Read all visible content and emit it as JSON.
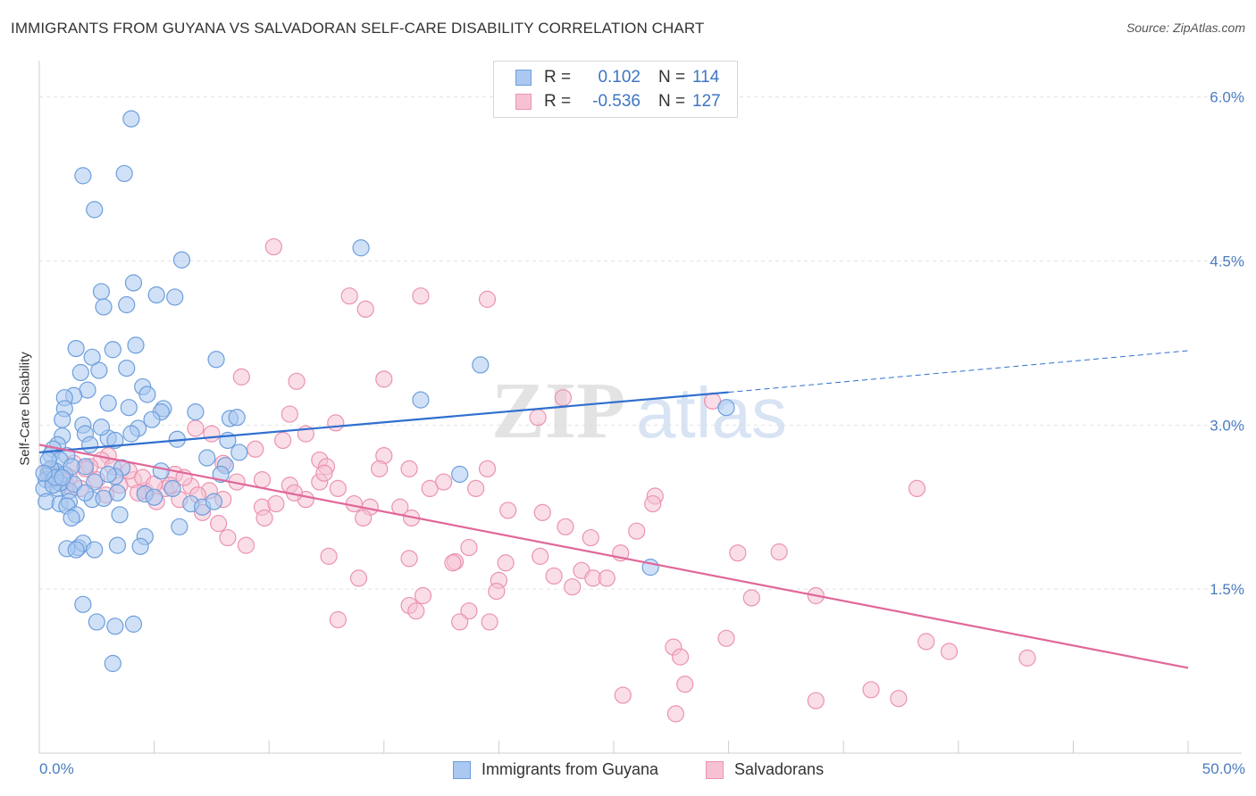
{
  "header": {
    "title": "IMMIGRANTS FROM GUYANA VS SALVADORAN SELF-CARE DISABILITY CORRELATION CHART",
    "source": "Source: ZipAtlas.com"
  },
  "watermark": {
    "zip": "ZIP",
    "atlas": "atlas"
  },
  "legend_top": {
    "rows": [
      {
        "r_label": "R =",
        "r_value": "0.102",
        "n_label": "N =",
        "n_value": "114"
      },
      {
        "r_label": "R =",
        "r_value": "-0.536",
        "n_label": "N =",
        "n_value": "127"
      }
    ]
  },
  "legend_bottom": {
    "items": [
      {
        "label": "Immigrants from Guyana"
      },
      {
        "label": "Salvadorans"
      }
    ]
  },
  "colors": {
    "blue_fill": "#aac8f0",
    "blue_stroke": "#6d9edc",
    "blue_line": "#2f6fcf",
    "pink_fill": "#f6c2d3",
    "pink_stroke": "#eb92b1",
    "pink_line": "#e0679a",
    "tick_text": "#4a7cc0",
    "grid": "#e4e4e4"
  },
  "chart_data": {
    "type": "scatter",
    "title": "IMMIGRANTS FROM GUYANA VS SALVADORAN SELF-CARE DISABILITY CORRELATION CHART",
    "xlabel": "",
    "ylabel": "Self-Care Disability",
    "xlim": [
      0,
      50
    ],
    "ylim": [
      0,
      6.25
    ],
    "x_tick_labels": [
      "0.0%",
      "50.0%"
    ],
    "y_ticks": [
      1.5,
      3.0,
      4.5,
      6.0
    ],
    "y_tick_labels": [
      "1.5%",
      "3.0%",
      "4.5%",
      "6.0%"
    ],
    "grid": true,
    "legend_position": "top-center",
    "series": [
      {
        "name": "Immigrants from Guyana",
        "r": 0.102,
        "n": 114,
        "trend": {
          "x0": 0,
          "y0": 2.75,
          "x_solid_end": 30,
          "y_solid_end": 3.3,
          "x1": 50,
          "y1": 3.68
        },
        "points": [
          [
            4.0,
            5.8
          ],
          [
            1.9,
            5.28
          ],
          [
            3.7,
            5.3
          ],
          [
            2.4,
            4.97
          ],
          [
            6.2,
            4.51
          ],
          [
            14.0,
            4.62
          ],
          [
            4.1,
            4.3
          ],
          [
            2.7,
            4.22
          ],
          [
            5.1,
            4.19
          ],
          [
            5.9,
            4.17
          ],
          [
            3.8,
            4.1
          ],
          [
            2.8,
            4.08
          ],
          [
            4.2,
            3.73
          ],
          [
            1.6,
            3.7
          ],
          [
            3.2,
            3.69
          ],
          [
            7.7,
            3.6
          ],
          [
            2.3,
            3.62
          ],
          [
            19.2,
            3.55
          ],
          [
            1.8,
            3.48
          ],
          [
            2.6,
            3.5
          ],
          [
            3.8,
            3.52
          ],
          [
            4.5,
            3.35
          ],
          [
            2.1,
            3.32
          ],
          [
            1.5,
            3.27
          ],
          [
            1.1,
            3.25
          ],
          [
            16.6,
            3.23
          ],
          [
            3.0,
            3.2
          ],
          [
            3.9,
            3.16
          ],
          [
            1.1,
            3.15
          ],
          [
            5.4,
            3.15
          ],
          [
            5.3,
            3.12
          ],
          [
            6.8,
            3.12
          ],
          [
            4.9,
            3.05
          ],
          [
            8.3,
            3.06
          ],
          [
            8.6,
            3.07
          ],
          [
            1.9,
            3.0
          ],
          [
            4.3,
            2.97
          ],
          [
            3.0,
            2.88
          ],
          [
            3.3,
            2.86
          ],
          [
            6.0,
            2.87
          ],
          [
            1.0,
            2.9
          ],
          [
            4.0,
            2.92
          ],
          [
            8.2,
            2.86
          ],
          [
            0.8,
            2.82
          ],
          [
            0.6,
            2.78
          ],
          [
            2.0,
            2.92
          ],
          [
            0.5,
            2.73
          ],
          [
            1.2,
            2.72
          ],
          [
            8.7,
            2.75
          ],
          [
            0.9,
            2.68
          ],
          [
            7.3,
            2.7
          ],
          [
            2.0,
            2.62
          ],
          [
            8.1,
            2.63
          ],
          [
            0.7,
            2.58
          ],
          [
            3.6,
            2.61
          ],
          [
            0.4,
            2.55
          ],
          [
            1.1,
            2.55
          ],
          [
            3.3,
            2.53
          ],
          [
            0.3,
            2.5
          ],
          [
            0.6,
            2.5
          ],
          [
            2.4,
            2.48
          ],
          [
            18.3,
            2.55
          ],
          [
            5.3,
            2.58
          ],
          [
            0.2,
            2.42
          ],
          [
            0.8,
            2.42
          ],
          [
            1.3,
            2.4
          ],
          [
            3.4,
            2.38
          ],
          [
            4.6,
            2.37
          ],
          [
            5.0,
            2.34
          ],
          [
            0.3,
            2.3
          ],
          [
            0.9,
            2.28
          ],
          [
            1.3,
            2.3
          ],
          [
            2.3,
            2.32
          ],
          [
            2.8,
            2.33
          ],
          [
            1.2,
            2.26
          ],
          [
            6.6,
            2.28
          ],
          [
            7.1,
            2.25
          ],
          [
            7.6,
            2.3
          ],
          [
            1.6,
            2.18
          ],
          [
            1.4,
            2.15
          ],
          [
            3.5,
            2.18
          ],
          [
            6.1,
            2.07
          ],
          [
            4.6,
            1.98
          ],
          [
            1.7,
            1.88
          ],
          [
            1.9,
            1.92
          ],
          [
            1.2,
            1.87
          ],
          [
            1.6,
            1.86
          ],
          [
            2.4,
            1.86
          ],
          [
            3.4,
            1.9
          ],
          [
            4.4,
            1.89
          ],
          [
            26.6,
            1.7
          ],
          [
            1.9,
            1.36
          ],
          [
            2.5,
            1.2
          ],
          [
            3.3,
            1.16
          ],
          [
            4.1,
            1.18
          ],
          [
            3.2,
            0.82
          ],
          [
            29.9,
            3.16
          ],
          [
            0.5,
            2.6
          ],
          [
            0.9,
            2.47
          ],
          [
            1.4,
            2.62
          ],
          [
            2.2,
            2.82
          ],
          [
            0.4,
            2.68
          ],
          [
            2.7,
            2.98
          ],
          [
            4.7,
            3.28
          ],
          [
            1.0,
            3.05
          ],
          [
            0.6,
            2.45
          ],
          [
            1.5,
            2.46
          ],
          [
            2.0,
            2.38
          ],
          [
            3.0,
            2.55
          ],
          [
            5.8,
            2.42
          ],
          [
            7.9,
            2.55
          ],
          [
            0.7,
            2.52
          ],
          [
            1.0,
            2.52
          ],
          [
            0.2,
            2.56
          ]
        ]
      },
      {
        "name": "Salvadorans",
        "r": -0.536,
        "n": 127,
        "trend": {
          "x0": 0,
          "y0": 2.82,
          "x1": 50,
          "y1": 0.78
        },
        "points": [
          [
            10.2,
            4.63
          ],
          [
            13.5,
            4.18
          ],
          [
            16.6,
            4.18
          ],
          [
            19.5,
            4.15
          ],
          [
            14.2,
            4.06
          ],
          [
            8.8,
            3.44
          ],
          [
            11.2,
            3.4
          ],
          [
            15.0,
            3.42
          ],
          [
            21.7,
            3.07
          ],
          [
            29.3,
            3.22
          ],
          [
            22.8,
            3.25
          ],
          [
            10.9,
            3.1
          ],
          [
            12.9,
            3.02
          ],
          [
            11.6,
            2.92
          ],
          [
            6.8,
            2.97
          ],
          [
            7.5,
            2.92
          ],
          [
            9.4,
            2.78
          ],
          [
            10.6,
            2.86
          ],
          [
            15.0,
            2.72
          ],
          [
            12.2,
            2.68
          ],
          [
            12.5,
            2.62
          ],
          [
            14.8,
            2.6
          ],
          [
            16.1,
            2.6
          ],
          [
            19.5,
            2.6
          ],
          [
            3.0,
            2.72
          ],
          [
            2.7,
            2.68
          ],
          [
            1.5,
            2.65
          ],
          [
            2.2,
            2.62
          ],
          [
            5.9,
            2.55
          ],
          [
            8.0,
            2.65
          ],
          [
            9.7,
            2.5
          ],
          [
            10.9,
            2.45
          ],
          [
            12.2,
            2.48
          ],
          [
            13.0,
            2.42
          ],
          [
            17.0,
            2.42
          ],
          [
            17.6,
            2.48
          ],
          [
            19.0,
            2.42
          ],
          [
            26.8,
            2.35
          ],
          [
            38.2,
            2.42
          ],
          [
            1.2,
            2.45
          ],
          [
            2.5,
            2.5
          ],
          [
            4.1,
            2.5
          ],
          [
            4.6,
            2.4
          ],
          [
            5.5,
            2.42
          ],
          [
            6.1,
            2.32
          ],
          [
            6.6,
            2.44
          ],
          [
            7.4,
            2.4
          ],
          [
            8.0,
            2.32
          ],
          [
            9.7,
            2.25
          ],
          [
            10.3,
            2.28
          ],
          [
            11.6,
            2.32
          ],
          [
            13.7,
            2.28
          ],
          [
            14.4,
            2.25
          ],
          [
            15.7,
            2.25
          ],
          [
            20.4,
            2.22
          ],
          [
            21.9,
            2.2
          ],
          [
            26.7,
            2.28
          ],
          [
            5.1,
            2.3
          ],
          [
            4.3,
            2.38
          ],
          [
            3.5,
            2.45
          ],
          [
            9.8,
            2.15
          ],
          [
            14.1,
            2.15
          ],
          [
            16.2,
            2.15
          ],
          [
            22.9,
            2.07
          ],
          [
            26.0,
            2.03
          ],
          [
            24.0,
            1.97
          ],
          [
            8.2,
            1.97
          ],
          [
            9.0,
            1.9
          ],
          [
            18.7,
            1.88
          ],
          [
            30.4,
            1.83
          ],
          [
            32.2,
            1.84
          ],
          [
            25.3,
            1.83
          ],
          [
            12.6,
            1.8
          ],
          [
            16.1,
            1.78
          ],
          [
            18.1,
            1.75
          ],
          [
            20.3,
            1.74
          ],
          [
            21.8,
            1.8
          ],
          [
            18.0,
            1.74
          ],
          [
            22.4,
            1.62
          ],
          [
            23.6,
            1.67
          ],
          [
            24.1,
            1.6
          ],
          [
            24.7,
            1.6
          ],
          [
            20.0,
            1.58
          ],
          [
            23.2,
            1.52
          ],
          [
            19.9,
            1.48
          ],
          [
            13.9,
            1.6
          ],
          [
            16.7,
            1.44
          ],
          [
            31.0,
            1.42
          ],
          [
            33.8,
            1.44
          ],
          [
            16.1,
            1.35
          ],
          [
            16.4,
            1.3
          ],
          [
            18.7,
            1.3
          ],
          [
            13.0,
            1.22
          ],
          [
            18.3,
            1.2
          ],
          [
            19.6,
            1.2
          ],
          [
            29.9,
            1.05
          ],
          [
            38.6,
            1.02
          ],
          [
            39.6,
            0.93
          ],
          [
            43.0,
            0.87
          ],
          [
            27.6,
            0.97
          ],
          [
            27.9,
            0.88
          ],
          [
            28.1,
            0.63
          ],
          [
            25.4,
            0.53
          ],
          [
            27.7,
            0.36
          ],
          [
            36.2,
            0.58
          ],
          [
            33.8,
            0.48
          ],
          [
            37.4,
            0.5
          ],
          [
            0.5,
            2.55
          ],
          [
            0.9,
            2.5
          ],
          [
            1.0,
            2.48
          ],
          [
            1.8,
            2.42
          ],
          [
            2.0,
            2.6
          ],
          [
            3.2,
            2.62
          ],
          [
            3.9,
            2.58
          ],
          [
            4.5,
            2.52
          ],
          [
            5.0,
            2.46
          ],
          [
            7.1,
            2.2
          ],
          [
            7.8,
            2.1
          ],
          [
            6.3,
            2.52
          ],
          [
            0.4,
            2.58
          ],
          [
            1.3,
            2.52
          ],
          [
            2.9,
            2.36
          ],
          [
            5.7,
            2.45
          ],
          [
            6.9,
            2.36
          ],
          [
            8.6,
            2.48
          ],
          [
            11.1,
            2.38
          ],
          [
            12.4,
            2.56
          ]
        ]
      }
    ]
  }
}
